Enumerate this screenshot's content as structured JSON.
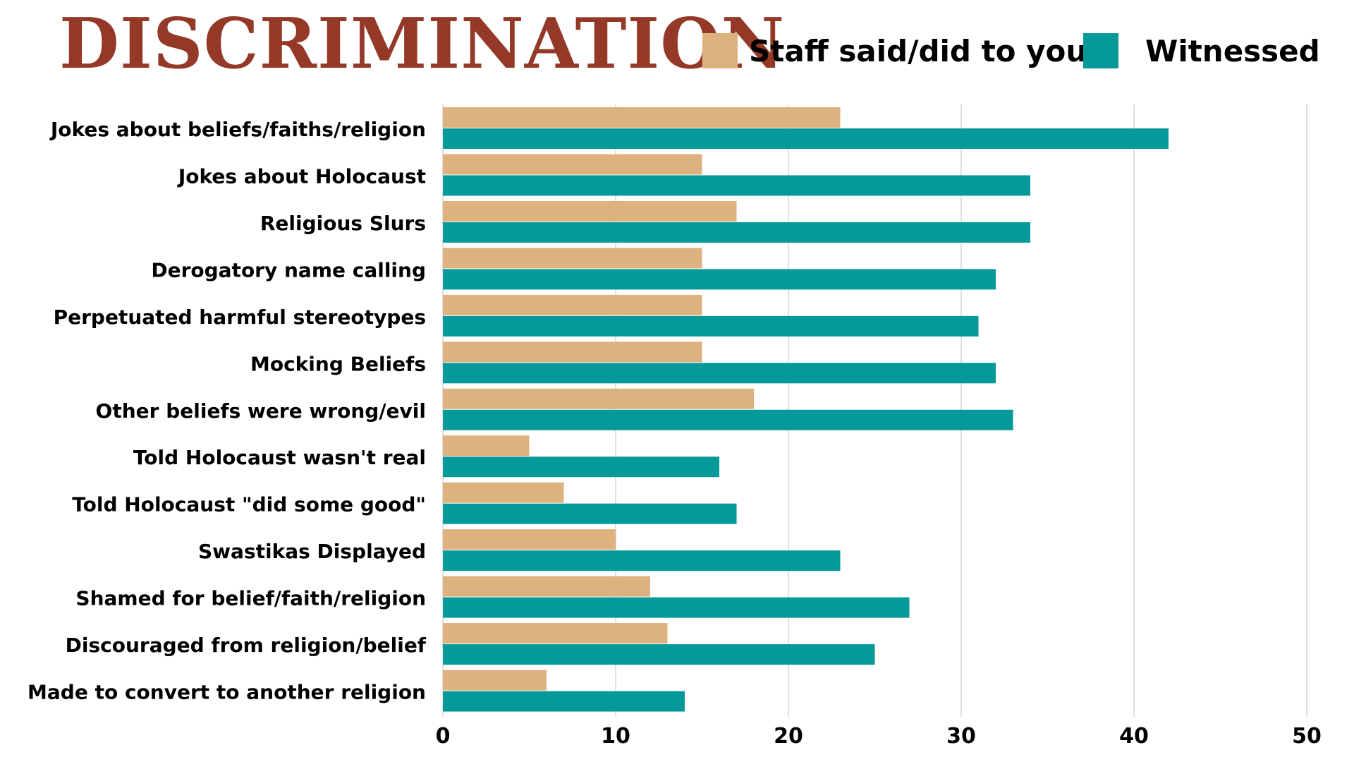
{
  "colors": {
    "title": "#943927",
    "staff": "#DDB27F",
    "witnessed": "#05999A",
    "grid": "#D6D6D6"
  },
  "chart_data": {
    "type": "bar",
    "orientation": "horizontal",
    "title": "DISCRIMINATION",
    "xlabel": "",
    "ylabel": "",
    "xlim": [
      0,
      50
    ],
    "xticks": [
      0,
      10,
      20,
      30,
      40,
      50
    ],
    "legend_position": "top-right",
    "grid": true,
    "categories": [
      "Jokes about beliefs/faiths/religion",
      "Jokes about Holocaust",
      "Religious Slurs",
      "Derogatory name calling",
      "Perpetuated harmful stereotypes",
      "Mocking Beliefs",
      "Other beliefs were wrong/evil",
      "Told Holocaust wasn't real",
      "Told Holocaust \"did some good\"",
      "Swastikas Displayed",
      "Shamed for belief/faith/religion",
      "Discouraged from religion/belief",
      "Made to convert to another religion"
    ],
    "series": [
      {
        "name": "Staff said/did to you",
        "color": "#DDB27F",
        "values": [
          23,
          15,
          17,
          15,
          15,
          15,
          18,
          5,
          7,
          10,
          12,
          13,
          6
        ]
      },
      {
        "name": "Witnessed",
        "color": "#05999A",
        "values": [
          42,
          34,
          34,
          32,
          31,
          32,
          33,
          16,
          17,
          23,
          27,
          25,
          14
        ]
      }
    ]
  }
}
